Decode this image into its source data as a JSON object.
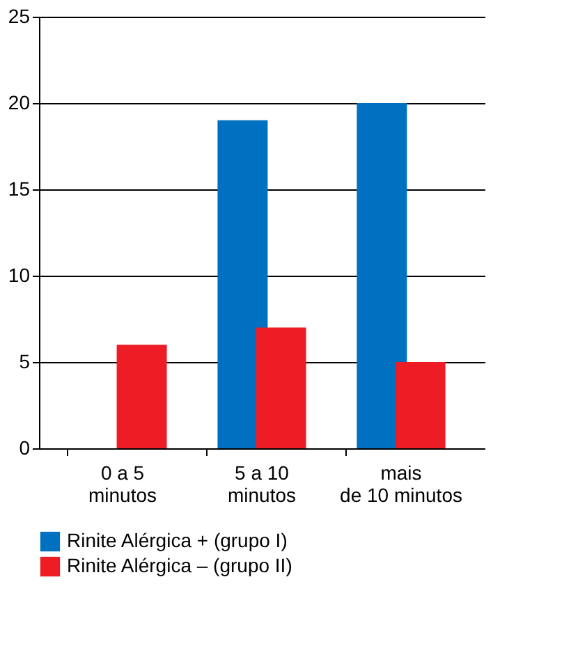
{
  "chart_data": {
    "type": "bar",
    "categories": [
      "0 a 5\nminutos",
      "5 a 10\nminutos",
      "mais\nde 10 minutos"
    ],
    "series": [
      {
        "name": "Rinite Alérgica + (grupo I)",
        "color": "#0070c0",
        "values": [
          0,
          19,
          20
        ]
      },
      {
        "name": "Rinite Alérgica – (grupo II)",
        "color": "#ee1c25",
        "values": [
          6,
          7,
          5
        ]
      }
    ],
    "ylim": [
      0,
      25
    ],
    "yticks": [
      0,
      5,
      10,
      15,
      20,
      25
    ],
    "grid": "y",
    "legend": "bottom"
  }
}
